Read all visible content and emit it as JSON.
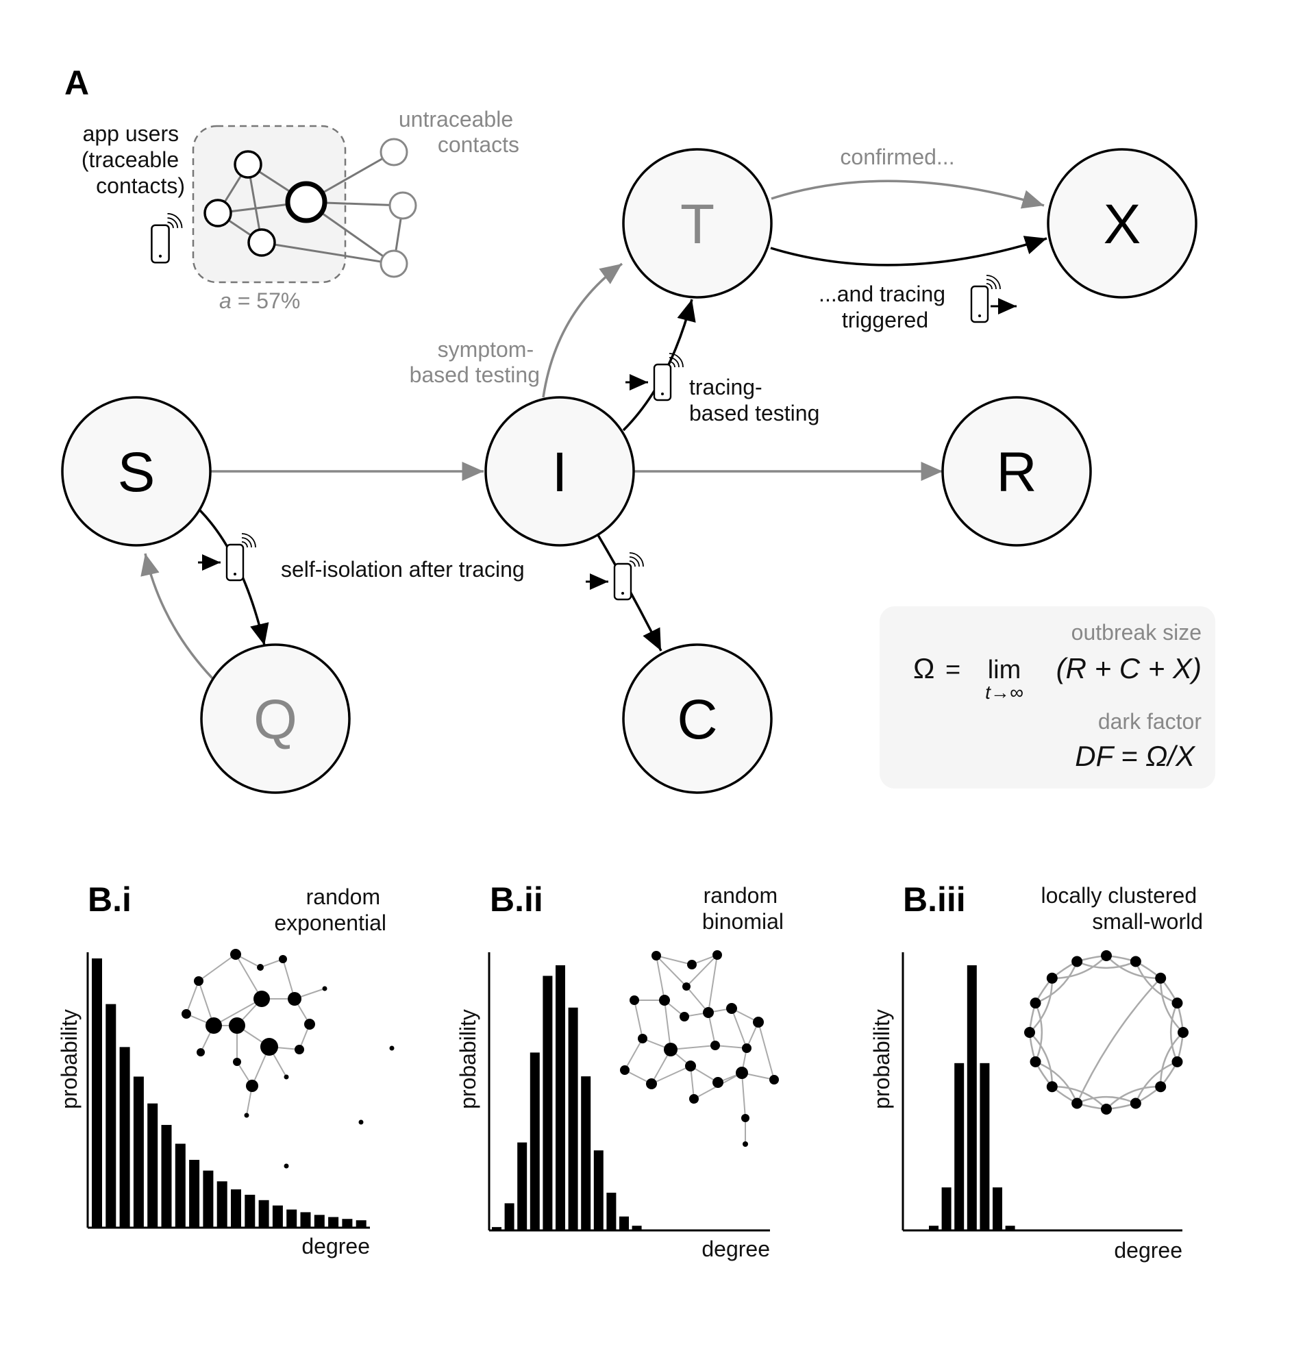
{
  "panel_a": {
    "label": "A",
    "nodes": {
      "S": {
        "letter": "S",
        "color": "#000000"
      },
      "I": {
        "letter": "I",
        "color": "#000000"
      },
      "T": {
        "letter": "T",
        "color": "#888888"
      },
      "X": {
        "letter": "X",
        "color": "#000000"
      },
      "R": {
        "letter": "R",
        "color": "#000000"
      },
      "Q": {
        "letter": "Q",
        "color": "#888888"
      },
      "C": {
        "letter": "C",
        "color": "#000000"
      }
    },
    "inset": {
      "app_users": [
        "app users",
        "(traceable",
        "contacts)"
      ],
      "untraceable": [
        "untraceable",
        "contacts"
      ],
      "fraction_symbol": "a",
      "fraction_value": " = 57%"
    },
    "labels": {
      "confirmed": "confirmed...",
      "and_tracing": [
        "...and tracing",
        "triggered"
      ],
      "symptom": [
        "symptom-",
        "based testing"
      ],
      "tracing_based": [
        "tracing-",
        "based testing"
      ],
      "self_isolation": "self-isolation after tracing"
    },
    "formula_box": {
      "outbreak_title": "outbreak size",
      "omega": "Ω",
      "eq": "=",
      "lim": "lim",
      "lim_sub": "t→∞",
      "omega_rhs": "(R + C + X)",
      "dark_title": "dark factor",
      "df_formula": "DF = Ω/X"
    }
  },
  "panel_b": [
    {
      "label": "B.i",
      "title": [
        "random",
        "exponential"
      ],
      "ylabel": "probability",
      "xlabel": "degree"
    },
    {
      "label": "B.ii",
      "title": [
        "random",
        "binomial"
      ],
      "ylabel": "probability",
      "xlabel": "degree"
    },
    {
      "label": "B.iii",
      "title": [
        "locally clustered",
        "small-world"
      ],
      "ylabel": "probability",
      "xlabel": "degree"
    }
  ],
  "chart_data": [
    {
      "type": "bar",
      "title": "random exponential",
      "xlabel": "degree",
      "ylabel": "probability",
      "values": [
        1.0,
        0.83,
        0.67,
        0.56,
        0.46,
        0.38,
        0.31,
        0.25,
        0.21,
        0.17,
        0.14,
        0.12,
        0.1,
        0.08,
        0.065,
        0.055,
        0.045,
        0.037,
        0.03,
        0.025
      ]
    },
    {
      "type": "bar",
      "title": "random binomial",
      "xlabel": "degree",
      "ylabel": "probability",
      "values": [
        0.01,
        0.1,
        0.33,
        0.67,
        0.96,
        1.0,
        0.84,
        0.58,
        0.3,
        0.14,
        0.05,
        0.015
      ]
    },
    {
      "type": "bar",
      "title": "locally clustered small-world",
      "xlabel": "degree",
      "ylabel": "probability",
      "values": [
        0.015,
        0.16,
        0.63,
        1.0,
        0.63,
        0.16,
        0.015
      ]
    }
  ]
}
